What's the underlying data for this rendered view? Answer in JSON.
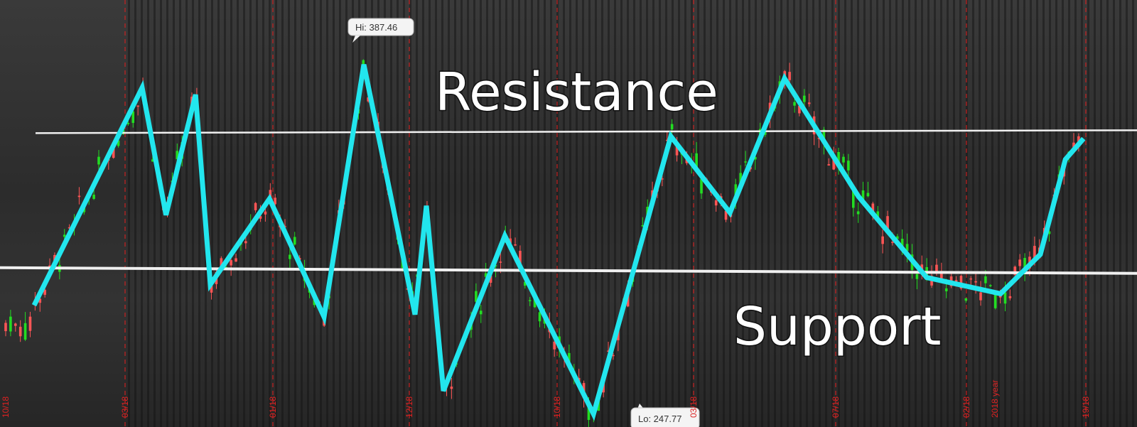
{
  "chart_data": {
    "type": "line",
    "title": "",
    "xlabel": "",
    "ylabel": "",
    "annotations": {
      "resistance_label": "Resistance",
      "support_label": "Support",
      "high_callout": "Hi: 387.46",
      "low_callout": "Lo: 247.77"
    },
    "high_value": 387.46,
    "low_value": 247.77,
    "resistance_level": 355,
    "support_level": 295,
    "ylim": [
      240,
      395
    ],
    "xlim": [
      0,
      100
    ],
    "zigzag_series": {
      "name": "",
      "x": [
        3,
        12.5,
        14.6,
        17.2,
        18.5,
        23.7,
        28.5,
        32,
        36.5,
        37.5,
        39,
        44.4,
        52.2,
        59,
        64.2,
        69,
        75.5,
        81.5,
        88,
        91.5,
        93.7,
        95.3
      ],
      "y": [
        280,
        374,
        319,
        371,
        289,
        326,
        275,
        384,
        276,
        323,
        243,
        310,
        233,
        353,
        320,
        378,
        327,
        292,
        285,
        302,
        343,
        352
      ]
    },
    "candles": {
      "x_start": 0.5,
      "x_end": 95.3,
      "count": 220
    },
    "date_tick_labels": [
      "10/18",
      "03/18",
      "01/18",
      "12/18",
      "10/18",
      "03/18",
      "07/18",
      "02/18",
      "2018 year",
      "19/18"
    ],
    "colors": {
      "up": "#22dd22",
      "down": "#ff5555",
      "zigzag": "#22e6ee",
      "levels": "#f0f0f0",
      "grid_red": "#d62020"
    }
  }
}
